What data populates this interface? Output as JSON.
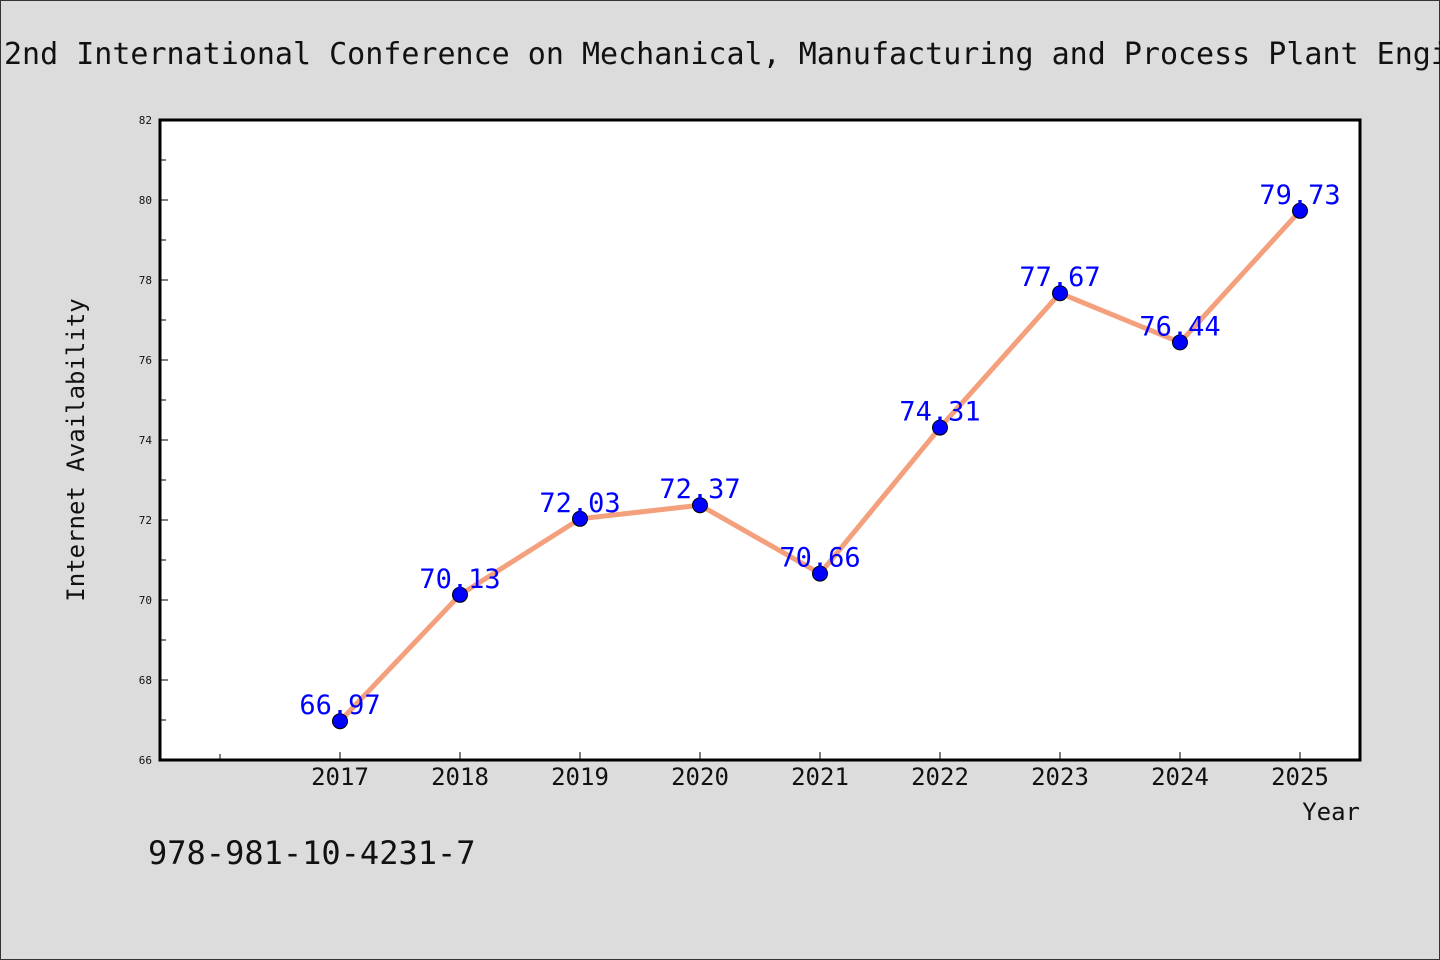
{
  "colors": {
    "background": "#dcdcdc",
    "plot_background": "#ffffff",
    "line": "#f4a07c",
    "marker": "#0000ff",
    "data_label": "#0000ff",
    "text": "#111111"
  },
  "footer": {
    "isbn": "978-981-10-4231-7"
  },
  "chart_data": {
    "type": "line",
    "title": "2nd International Conference on Mechanical, Manufacturing and Process Plant Engi",
    "xlabel": "Year",
    "ylabel": "Internet Availability",
    "categories": [
      "2017",
      "2018",
      "2019",
      "2020",
      "2021",
      "2022",
      "2023",
      "2024",
      "2025"
    ],
    "series": [
      {
        "values": [
          66.97,
          70.13,
          72.03,
          72.37,
          70.66,
          74.31,
          77.67,
          76.44,
          79.73
        ]
      }
    ],
    "data_labels": [
      "66.97",
      "70.13",
      "72.03",
      "72.37",
      "70.66",
      "74.31",
      "77.67",
      "76.44",
      "79.73"
    ],
    "y_ticks": [
      "66",
      "68",
      "70",
      "72",
      "74",
      "76",
      "78",
      "80",
      "82"
    ],
    "ylim": [
      66,
      82
    ],
    "grid": false,
    "legend": "none"
  }
}
